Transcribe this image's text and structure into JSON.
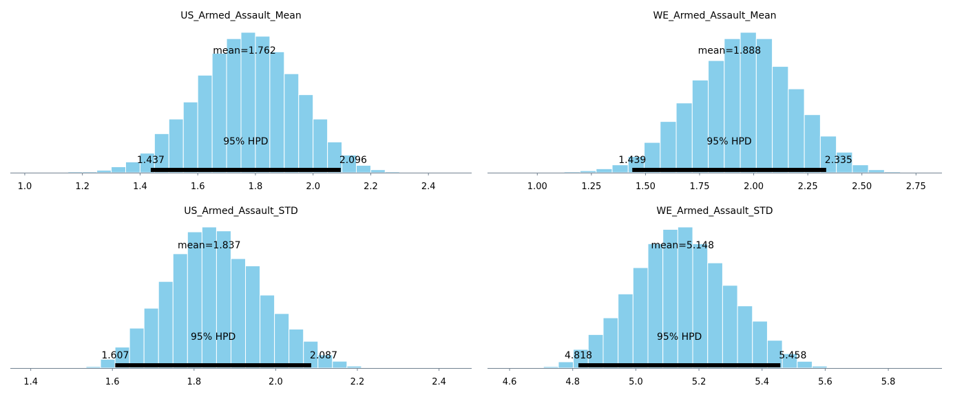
{
  "figure": {
    "bar_color": "#87ceeb",
    "bar_edge_color": "#ffffff",
    "hpd_color": "#000000",
    "axis_color": "#708090"
  },
  "chart_data": [
    {
      "type": "bar",
      "title": "US_Armed_Assault_Mean",
      "mean_label": "mean=1.762",
      "hpd_label": "95% HPD",
      "hpd_low": 1.437,
      "hpd_high": 2.096,
      "hpd_low_label": "1.437",
      "hpd_high_label": "2.096",
      "xlim": [
        0.95,
        2.55
      ],
      "xticks": [
        1.0,
        1.2,
        1.4,
        1.6,
        1.8,
        2.0,
        2.2,
        2.4
      ],
      "xtick_labels": [
        "1.0",
        "1.2",
        "1.4",
        "1.6",
        "1.8",
        "2.0",
        "2.2",
        "2.4"
      ],
      "bin_start": 1.15,
      "bin_width": 0.05,
      "counts": [
        0.2,
        0.2,
        0.5,
        1.2,
        2.2,
        4.0,
        8.0,
        11.0,
        14.5,
        20.0,
        24.5,
        27.5,
        28.8,
        28.0,
        24.8,
        20.3,
        16.0,
        11.0,
        6.3,
        3.6,
        1.5,
        0.6,
        0.2,
        0.1
      ]
    },
    {
      "type": "bar",
      "title": "WE_Armed_Assault_Mean",
      "mean_label": "mean=1.888",
      "hpd_label": "95% HPD",
      "hpd_low": 1.439,
      "hpd_high": 2.335,
      "hpd_low_label": "1.439",
      "hpd_high_label": "2.335",
      "xlim": [
        0.77,
        2.87
      ],
      "xticks": [
        1.0,
        1.25,
        1.5,
        1.75,
        2.0,
        2.25,
        2.5,
        2.75
      ],
      "xtick_labels": [
        "1.00",
        "1.25",
        "1.50",
        "1.75",
        "2.00",
        "2.25",
        "2.50",
        "2.75"
      ],
      "bin_start": 1.05,
      "bin_width": 0.074,
      "counts": [
        0.1,
        0.2,
        0.4,
        0.8,
        1.6,
        3.3,
        6.2,
        10.5,
        14.3,
        19.0,
        23.0,
        27.5,
        28.8,
        27.5,
        21.8,
        17.2,
        11.9,
        7.5,
        4.2,
        1.6,
        0.6,
        0.2,
        0.05
      ]
    },
    {
      "type": "bar",
      "title": "US_Armed_Assault_STD",
      "mean_label": "mean=1.837",
      "hpd_label": "95% HPD",
      "hpd_low": 1.607,
      "hpd_high": 2.087,
      "hpd_low_label": "1.607",
      "hpd_high_label": "2.087",
      "xlim": [
        1.35,
        2.48
      ],
      "xticks": [
        1.4,
        1.6,
        1.8,
        2.0,
        2.2,
        2.4
      ],
      "xtick_labels": [
        "1.4",
        "1.6",
        "1.8",
        "2.0",
        "2.2",
        "2.4"
      ],
      "bin_start": 1.5,
      "bin_width": 0.0355,
      "counts": [
        0.1,
        0.3,
        1.8,
        4.3,
        8.2,
        12.3,
        17.8,
        23.5,
        28.0,
        29.0,
        28.2,
        22.5,
        21.0,
        15.0,
        11.2,
        8.0,
        5.5,
        2.7,
        1.4,
        0.4,
        0.1
      ]
    },
    {
      "type": "bar",
      "title": "WE_Armed_Assault_STD",
      "mean_label": "mean=5.148",
      "hpd_label": "95% HPD",
      "hpd_low": 4.818,
      "hpd_high": 5.458,
      "hpd_low_label": "4.818",
      "hpd_high_label": "5.458",
      "xlim": [
        4.53,
        5.97
      ],
      "xticks": [
        4.6,
        4.8,
        5.0,
        5.2,
        5.4,
        5.6,
        5.8
      ],
      "xtick_labels": [
        "4.6",
        "4.8",
        "5.0",
        "5.2",
        "5.4",
        "5.6",
        "5.8"
      ],
      "bin_start": 4.66,
      "bin_width": 0.0473,
      "counts": [
        0.1,
        0.3,
        1.3,
        3.9,
        7.0,
        10.5,
        15.5,
        21.0,
        26.0,
        29.0,
        29.5,
        26.0,
        22.0,
        17.3,
        13.0,
        9.8,
        5.8,
        3.0,
        1.4,
        0.4,
        0.1
      ]
    }
  ]
}
